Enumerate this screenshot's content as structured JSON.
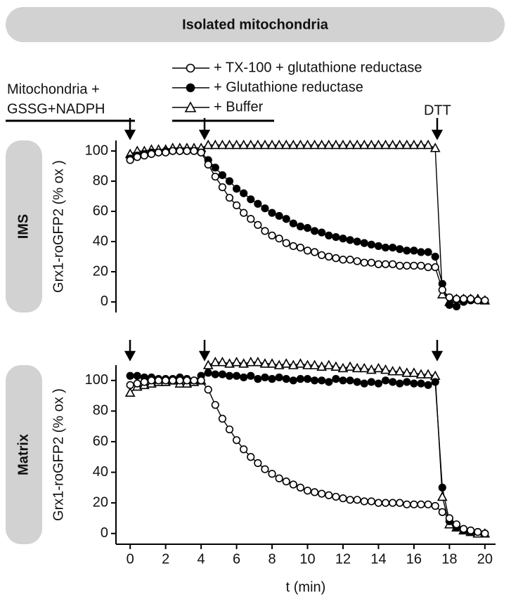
{
  "header": {
    "title": "Isolated mitochondria"
  },
  "annotations": {
    "start_line1": "Mitochondria +",
    "start_line2": "GSSG+NADPH",
    "dtt": "DTT"
  },
  "chart_data": [
    {
      "type": "line",
      "panel_label": "IMS",
      "ylabel": "Grx1-roGFP2 (% ox )",
      "xlim": [
        -0.8,
        20.6
      ],
      "ylim": [
        -7,
        107
      ],
      "yticks": [
        0,
        20,
        40,
        60,
        80,
        100
      ],
      "legend": true,
      "x": [
        0,
        0.4,
        0.8,
        1.2,
        1.6,
        2,
        2.4,
        2.8,
        3.2,
        3.6,
        4,
        4.4,
        4.8,
        5.2,
        5.6,
        6,
        6.4,
        6.8,
        7.2,
        7.6,
        8,
        8.4,
        8.8,
        9.2,
        9.6,
        10,
        10.4,
        10.8,
        11.2,
        11.6,
        12,
        12.4,
        12.8,
        13.2,
        13.6,
        14,
        14.4,
        14.8,
        15.2,
        15.6,
        16,
        16.4,
        16.8,
        17.2,
        17.6,
        18,
        18.4,
        18.8,
        19.2,
        19.6,
        20
      ],
      "series": [
        {
          "name": "+ TX-100 + glutathione reductase",
          "color": "#000000",
          "marker": "circle-open",
          "values": [
            94,
            96,
            97,
            98,
            99,
            99,
            100,
            100,
            100,
            100,
            99,
            91,
            83,
            76,
            69,
            64,
            59,
            55,
            51,
            47,
            44,
            42,
            39,
            37,
            36,
            34,
            33,
            31,
            30,
            29,
            28,
            28,
            27,
            26,
            26,
            25,
            25,
            25,
            24,
            24,
            24,
            24,
            23,
            23,
            8,
            3,
            2,
            2,
            2,
            1,
            1
          ]
        },
        {
          "name": "+ Glutathione reductase",
          "color": "#000000",
          "marker": "circle-filled",
          "values": [
            95,
            97,
            98,
            99,
            99,
            100,
            100,
            100,
            100,
            100,
            99,
            94,
            89,
            84,
            80,
            75,
            72,
            68,
            65,
            62,
            59,
            57,
            55,
            52,
            50,
            49,
            47,
            46,
            44,
            43,
            42,
            41,
            40,
            39,
            38,
            37,
            36,
            36,
            35,
            34,
            34,
            33,
            33,
            30,
            12,
            -2,
            -3,
            0,
            1,
            1,
            1
          ]
        },
        {
          "name": "+ Buffer",
          "color": "#000000",
          "marker": "triangle-open",
          "values": [
            98,
            100,
            100,
            101,
            101,
            101,
            102,
            102,
            102,
            102,
            102,
            104,
            104,
            104,
            104,
            104,
            104,
            104,
            104,
            104,
            104,
            104,
            104,
            104,
            104,
            104,
            104,
            104,
            104,
            104,
            104,
            104,
            104,
            104,
            104,
            104,
            104,
            104,
            104,
            104,
            104,
            104,
            104,
            102,
            5,
            0,
            2,
            2,
            2,
            2,
            1
          ]
        }
      ]
    },
    {
      "type": "line",
      "panel_label": "Matrix",
      "ylabel": "Grx1-roGFP2 (% ox )",
      "xlabel": "t (min)",
      "xlim": [
        -0.8,
        20.6
      ],
      "ylim": [
        -7,
        110
      ],
      "yticks": [
        0,
        20,
        40,
        60,
        80,
        100
      ],
      "xticks": [
        0,
        2,
        4,
        6,
        8,
        10,
        12,
        14,
        16,
        18,
        20
      ],
      "x": [
        0,
        0.4,
        0.8,
        1.2,
        1.6,
        2,
        2.4,
        2.8,
        3.2,
        3.6,
        4,
        4.4,
        4.8,
        5.2,
        5.6,
        6,
        6.4,
        6.8,
        7.2,
        7.6,
        8,
        8.4,
        8.8,
        9.2,
        9.6,
        10,
        10.4,
        10.8,
        11.2,
        11.6,
        12,
        12.4,
        12.8,
        13.2,
        13.6,
        14,
        14.4,
        14.8,
        15.2,
        15.6,
        16,
        16.4,
        16.8,
        17.2,
        17.6,
        18,
        18.4,
        18.8,
        19.2,
        19.6,
        20
      ],
      "series": [
        {
          "color": "#000000",
          "marker": "circle-open",
          "values": [
            97,
            98,
            99,
            100,
            100,
            100,
            100,
            100,
            100,
            100,
            100,
            94,
            84,
            75,
            68,
            61,
            55,
            50,
            46,
            42,
            39,
            36,
            34,
            32,
            30,
            28,
            27,
            26,
            25,
            24,
            23,
            22,
            22,
            21,
            21,
            20,
            20,
            20,
            20,
            19,
            19,
            19,
            19,
            18,
            14,
            10,
            6,
            3,
            2,
            1,
            0
          ]
        },
        {
          "color": "#000000",
          "marker": "circle-filled",
          "values": [
            103,
            103,
            102,
            102,
            101,
            101,
            101,
            102,
            101,
            100,
            103,
            105,
            104,
            104,
            103,
            103,
            102,
            103,
            101,
            102,
            101,
            102,
            101,
            100,
            101,
            101,
            100,
            100,
            99,
            101,
            100,
            100,
            99,
            98,
            99,
            98,
            100,
            99,
            98,
            99,
            98,
            98,
            97,
            99,
            30,
            8,
            4,
            2,
            1,
            1,
            0
          ]
        },
        {
          "color": "#000000",
          "marker": "triangle-open",
          "values": [
            92,
            96,
            97,
            98,
            99,
            99,
            100,
            98,
            98,
            99,
            100,
            110,
            112,
            112,
            111,
            112,
            111,
            112,
            112,
            111,
            111,
            110,
            111,
            110,
            111,
            110,
            110,
            109,
            110,
            109,
            108,
            109,
            108,
            108,
            107,
            108,
            107,
            106,
            106,
            105,
            105,
            104,
            104,
            103,
            24,
            6,
            4,
            2,
            1,
            0,
            0
          ]
        }
      ]
    }
  ]
}
